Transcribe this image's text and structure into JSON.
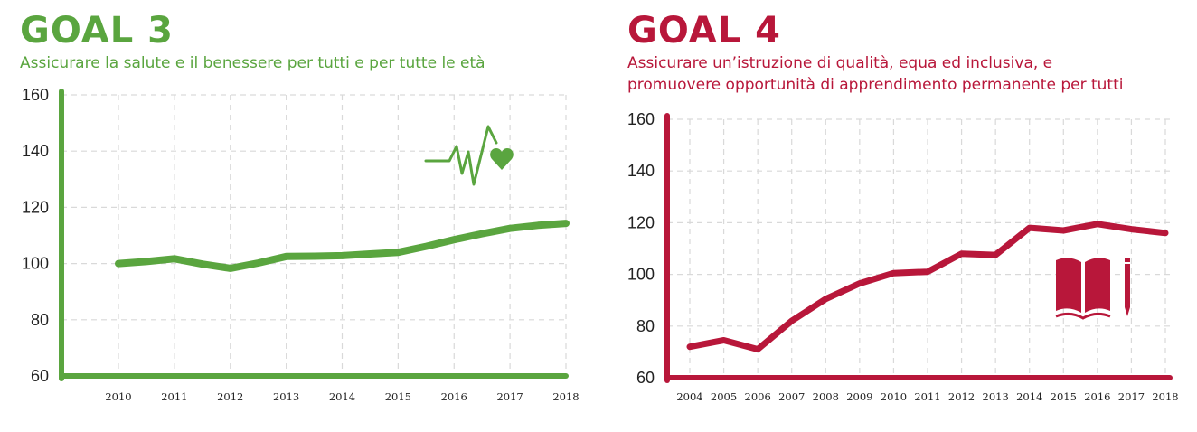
{
  "colors": {
    "goal3": "#5aa53f",
    "goal4": "#b8173a",
    "grid": "#d9d9d9",
    "text": "#222222"
  },
  "panels": [
    {
      "title": "GOAL 3",
      "subtitle_lines": [
        "Assicurare la salute e il benessere per tutti e per tutte le età"
      ],
      "icon": "heartbeat-heart-icon"
    },
    {
      "title": "GOAL 4",
      "subtitle_lines": [
        "Assicurare un’istruzione di qualità, equa ed inclusiva, e",
        "promuovere opportunità di apprendimento permanente per tutti"
      ],
      "icon": "open-book-pencil-icon"
    }
  ],
  "chart_data": [
    {
      "type": "line",
      "title": "GOAL 3",
      "subtitle": "Assicurare la salute e il benessere per tutti e per tutte le età",
      "x": [
        "2010",
        "2011",
        "2012",
        "2013",
        "2014",
        "2015",
        "2016",
        "2017",
        "2018"
      ],
      "yticks": [
        60,
        80,
        100,
        120,
        140,
        160
      ],
      "ylim": [
        60,
        160
      ],
      "grid": true,
      "series": [
        {
          "x": [
            2010,
            2010.5,
            2011,
            2011.5,
            2012,
            2012.5,
            2013,
            2013.5,
            2014,
            2014.5,
            2015,
            2015.5,
            2016,
            2016.5,
            2017,
            2017.5,
            2018
          ],
          "values": [
            100,
            100.7,
            101.7,
            99.8,
            98.3,
            100.2,
            102.5,
            102.6,
            102.8,
            103.4,
            104.0,
            106.1,
            108.5,
            110.6,
            112.5,
            113.6,
            114.3
          ]
        }
      ]
    },
    {
      "type": "line",
      "title": "GOAL 4",
      "subtitle": "Assicurare un’istruzione di qualità, equa ed inclusiva, e promuovere opportunità di apprendimento permanente per tutti",
      "x": [
        "2004",
        "2005",
        "2006",
        "2007",
        "2008",
        "2009",
        "2010",
        "2011",
        "2012",
        "2013",
        "2014",
        "2015",
        "2016",
        "2017",
        "2018"
      ],
      "yticks": [
        60,
        80,
        100,
        120,
        140,
        160
      ],
      "ylim": [
        60,
        160
      ],
      "grid": true,
      "series": [
        {
          "x": [
            2004,
            2005,
            2006,
            2007,
            2008,
            2009,
            2010,
            2011,
            2012,
            2013,
            2014,
            2015,
            2016,
            2017,
            2018
          ],
          "values": [
            72,
            74.5,
            71,
            82,
            90.5,
            96.5,
            100.5,
            101,
            108,
            107.5,
            118,
            117,
            119.5,
            117.5,
            116
          ]
        }
      ]
    }
  ]
}
